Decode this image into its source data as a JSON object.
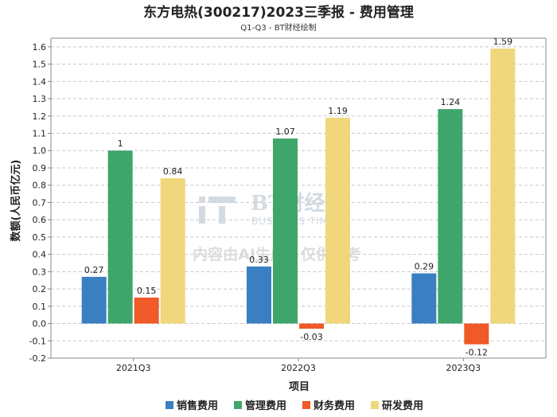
{
  "chart_data": {
    "type": "bar",
    "title": "东方电热(300217)2023三季报 - 费用管理",
    "subtitle": "Q1-Q3 - BT财经绘制",
    "xlabel": "项目",
    "ylabel": "数额(人民币亿元)",
    "ylim": [
      -0.2,
      1.65
    ],
    "yticks": [
      -0.2,
      -0.1,
      0.0,
      0.1,
      0.2,
      0.3,
      0.4,
      0.5,
      0.6,
      0.7,
      0.8,
      0.9,
      1.0,
      1.1,
      1.2,
      1.3,
      1.4,
      1.5,
      1.6
    ],
    "ytick_labels": [
      "-0.2",
      "-0.1",
      "0.0",
      "0.1",
      "0.2",
      "0.3",
      "0.4",
      "0.5",
      "0.6",
      "0.7",
      "0.8",
      "0.9",
      "1.0",
      "1.1",
      "1.2",
      "1.3",
      "1.4",
      "1.5",
      "1.6"
    ],
    "grid": true,
    "legend_position": "bottom",
    "categories": [
      "2021Q3",
      "2022Q3",
      "2023Q3"
    ],
    "series": [
      {
        "name": "销售费用",
        "color": "#3a7fc1",
        "values": [
          0.27,
          0.33,
          0.29
        ],
        "labels": [
          "0.27",
          "0.33",
          "0.29"
        ]
      },
      {
        "name": "管理费用",
        "color": "#3fa66b",
        "values": [
          1.0,
          1.07,
          1.24
        ],
        "labels": [
          "1",
          "1.07",
          "1.24"
        ]
      },
      {
        "name": "财务费用",
        "color": "#ef5a28",
        "values": [
          0.15,
          -0.03,
          -0.12
        ],
        "labels": [
          "0.15",
          "-0.03",
          "-0.12"
        ]
      },
      {
        "name": "研发费用",
        "color": "#f0d77c",
        "values": [
          0.84,
          1.19,
          1.59
        ],
        "labels": [
          "0.84",
          "1.19",
          "1.59"
        ]
      }
    ]
  },
  "watermark": {
    "brand": "BT财经",
    "brand_en": "BUSINESS TIMES",
    "notice": "内容由AI生成，仅供参考"
  }
}
